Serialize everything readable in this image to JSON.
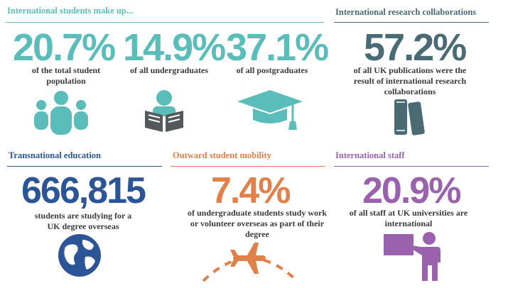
{
  "colors": {
    "teal": "#5bbdb9",
    "dark_teal": "#4a6b73",
    "navy": "#2c5597",
    "orange": "#e2804a",
    "purple": "#9a62ad",
    "grey": "#54595c"
  },
  "international_students": {
    "header": "International students make up...",
    "items": [
      {
        "stat": "20.7%",
        "desc": "of the total student population",
        "icon": "group-of-people-icon"
      },
      {
        "stat": "14.9%",
        "desc": "of all undergraduates",
        "icon": "person-reading-book-icon"
      },
      {
        "stat": "37.1%",
        "desc": "of all postgraduates",
        "icon": "graduation-cap-icon"
      }
    ]
  },
  "research": {
    "header": "International research collaborations",
    "stat": "57.2%",
    "desc": "of all UK publications were the result of international research collaborations",
    "icon": "books-icon"
  },
  "transnational": {
    "header": "Transnational education",
    "stat": "666,815",
    "desc": "students are studying for a UK degree overseas",
    "icon": "globe-icon"
  },
  "mobility": {
    "header": "Outward student mobility",
    "stat": "7.4%",
    "desc": "of undergraduate students study work or volunteer overseas as part of their degree",
    "icon": "airplane-icon"
  },
  "staff": {
    "header": "International staff",
    "stat": "20.9%",
    "desc": "of all staff at UK universities are international",
    "icon": "teacher-at-board-icon"
  }
}
